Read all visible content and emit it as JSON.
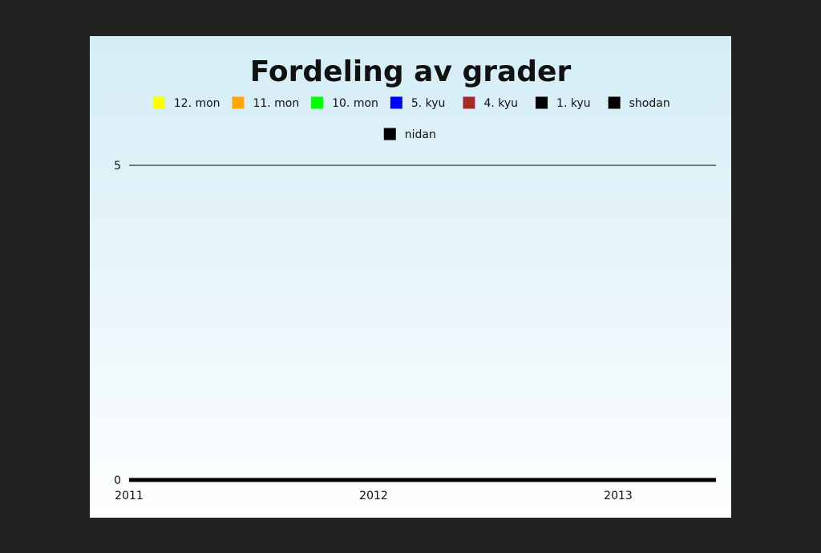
{
  "chart_data": {
    "type": "area",
    "title": "Fordeling av grader",
    "xlabel": "",
    "ylabel": "",
    "x": [
      "2011",
      "2012",
      "2013"
    ],
    "xlim": [
      2011,
      2013.4
    ],
    "ylim": [
      0,
      5
    ],
    "y_ticks": [
      0,
      5
    ],
    "grid": false,
    "legend_position": "top",
    "series": [
      {
        "name": "12. mon",
        "color": "#ffff00",
        "values": [
          0,
          0,
          0
        ]
      },
      {
        "name": "11. mon",
        "color": "#ffa500",
        "values": [
          0,
          0,
          0
        ]
      },
      {
        "name": "10. mon",
        "color": "#00ff00",
        "values": [
          0,
          0,
          0
        ]
      },
      {
        "name": "5. kyu",
        "color": "#0000ff",
        "values": [
          0,
          0,
          0
        ]
      },
      {
        "name": "4. kyu",
        "color": "#a52a2a",
        "values": [
          0,
          0,
          0
        ]
      },
      {
        "name": "1. kyu",
        "color": "#000000",
        "values": [
          0,
          0,
          0
        ]
      },
      {
        "name": "shodan",
        "color": "#000000",
        "values": [
          0,
          0,
          0
        ]
      },
      {
        "name": "nidan",
        "color": "#000000",
        "values": [
          0,
          0,
          0
        ]
      }
    ]
  }
}
